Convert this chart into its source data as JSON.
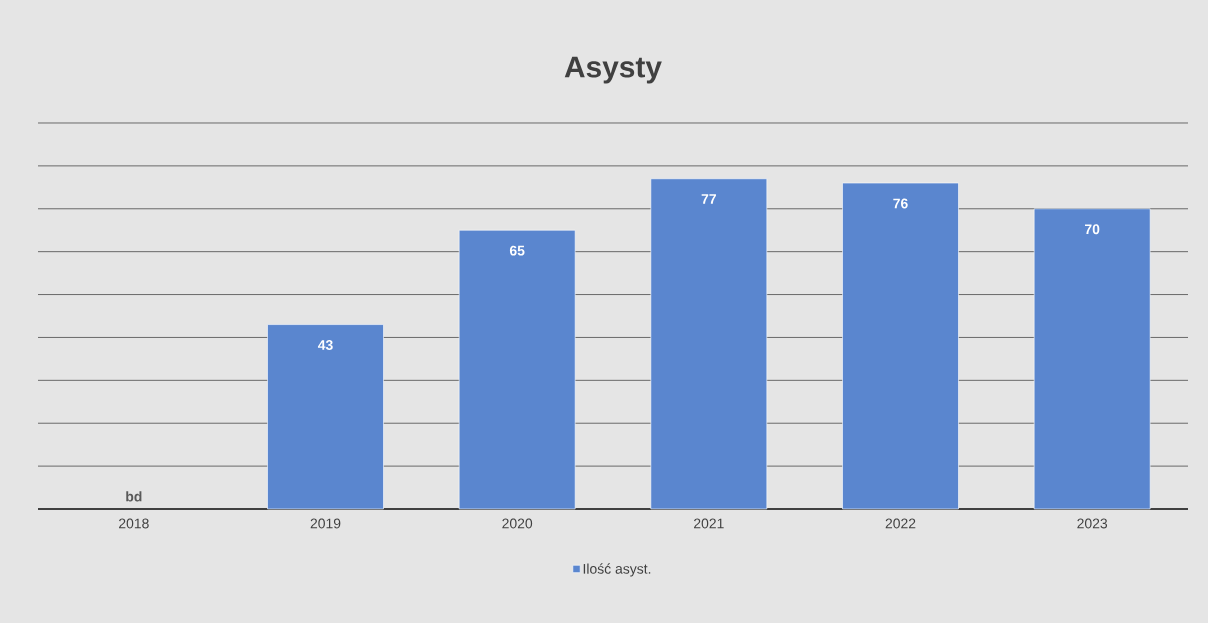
{
  "chart_data": {
    "type": "bar",
    "title": "Asysty",
    "categories": [
      "2018",
      "2019",
      "2020",
      "2021",
      "2022",
      "2023"
    ],
    "series": [
      {
        "name": "Ilość asyst.",
        "color": "#5a86cf",
        "values": [
          null,
          43,
          65,
          77,
          76,
          70
        ],
        "value_labels": [
          "bd",
          "43",
          "65",
          "77",
          "76",
          "70"
        ]
      }
    ],
    "ylim": [
      0,
      90
    ],
    "yticks": [
      {
        "value": 0,
        "label": null
      },
      {
        "value": 10,
        "label": null
      },
      {
        "value": 20,
        "label": null
      },
      {
        "value": 30,
        "label": null
      },
      {
        "value": 40,
        "label": null
      },
      {
        "value": 50,
        "label": null
      },
      {
        "value": 60,
        "label": null
      },
      {
        "value": 70,
        "label": null
      },
      {
        "value": 80,
        "label": null
      },
      {
        "value": 90,
        "label": null
      }
    ],
    "tick_labels": "x",
    "grid": "y",
    "legend": "bottom"
  }
}
